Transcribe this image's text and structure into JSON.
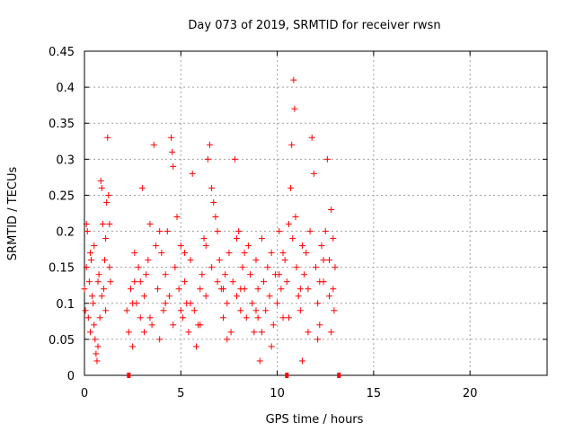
{
  "chart_data": {
    "type": "scatter",
    "title": "Day 073 of 2019, SRMTID for receiver rwsn",
    "xlabel": "GPS time / hours",
    "ylabel": "SRMTID / TECUs",
    "xlim": [
      0,
      24
    ],
    "ylim": [
      0,
      0.45
    ],
    "x_ticks": [
      "0",
      "5",
      "10",
      "15",
      "20"
    ],
    "y_ticks": [
      "0",
      "0.05",
      "0.1",
      "0.15",
      "0.2",
      "0.25",
      "0.3",
      "0.35",
      "0.4",
      "0.45"
    ],
    "grid": true,
    "marker": "+",
    "series_color": "#ff0000",
    "series": [
      {
        "values": [
          [
            0.0,
            0.12
          ],
          [
            0.05,
            0.09
          ],
          [
            0.1,
            0.15
          ],
          [
            0.15,
            0.2
          ],
          [
            0.2,
            0.08
          ],
          [
            0.25,
            0.13
          ],
          [
            0.3,
            0.06
          ],
          [
            0.35,
            0.16
          ],
          [
            0.4,
            0.11
          ],
          [
            0.45,
            0.1
          ],
          [
            0.5,
            0.18
          ],
          [
            0.55,
            0.05
          ],
          [
            0.6,
            0.03
          ],
          [
            0.65,
            0.02
          ],
          [
            0.7,
            0.04
          ],
          [
            0.75,
            0.14
          ],
          [
            0.8,
            0.08
          ],
          [
            0.85,
            0.27
          ],
          [
            0.9,
            0.26
          ],
          [
            0.95,
            0.21
          ],
          [
            1.0,
            0.12
          ],
          [
            1.05,
            0.16
          ],
          [
            1.1,
            0.09
          ],
          [
            1.15,
            0.24
          ],
          [
            1.2,
            0.33
          ],
          [
            1.25,
            0.25
          ],
          [
            1.3,
            0.21
          ],
          [
            1.35,
            0.13
          ],
          [
            0.1,
            0.21
          ],
          [
            0.3,
            0.17
          ],
          [
            0.5,
            0.07
          ],
          [
            0.7,
            0.13
          ],
          [
            0.9,
            0.11
          ],
          [
            1.1,
            0.19
          ],
          [
            1.3,
            0.15
          ],
          [
            2.2,
            0.09
          ],
          [
            2.3,
            0.06
          ],
          [
            2.4,
            0.12
          ],
          [
            2.5,
            0.04
          ],
          [
            2.6,
            0.13
          ],
          [
            2.7,
            0.1
          ],
          [
            2.8,
            0.15
          ],
          [
            2.9,
            0.08
          ],
          [
            3.0,
            0.26
          ],
          [
            3.1,
            0.11
          ],
          [
            3.2,
            0.14
          ],
          [
            3.3,
            0.16
          ],
          [
            3.4,
            0.21
          ],
          [
            3.5,
            0.07
          ],
          [
            3.6,
            0.32
          ],
          [
            3.7,
            0.18
          ],
          [
            3.8,
            0.12
          ],
          [
            3.9,
            0.05
          ],
          [
            4.0,
            0.17
          ],
          [
            4.1,
            0.09
          ],
          [
            4.2,
            0.14
          ],
          [
            4.3,
            0.2
          ],
          [
            4.4,
            0.11
          ],
          [
            4.5,
            0.33
          ],
          [
            4.55,
            0.31
          ],
          [
            4.6,
            0.29
          ],
          [
            4.7,
            0.15
          ],
          [
            4.8,
            0.22
          ],
          [
            4.9,
            0.12
          ],
          [
            5.0,
            0.18
          ],
          [
            5.1,
            0.08
          ],
          [
            5.2,
            0.13
          ],
          [
            5.3,
            0.1
          ],
          [
            5.4,
            0.06
          ],
          [
            5.5,
            0.16
          ],
          [
            5.6,
            0.28
          ],
          [
            5.7,
            0.09
          ],
          [
            5.8,
            0.04
          ],
          [
            5.9,
            0.07
          ],
          [
            6.0,
            0.12
          ],
          [
            6.1,
            0.14
          ],
          [
            6.2,
            0.19
          ],
          [
            6.3,
            0.11
          ],
          [
            6.4,
            0.3
          ],
          [
            6.5,
            0.32
          ],
          [
            6.6,
            0.26
          ],
          [
            6.7,
            0.24
          ],
          [
            6.8,
            0.22
          ],
          [
            6.9,
            0.2
          ],
          [
            7.0,
            0.16
          ],
          [
            7.1,
            0.12
          ],
          [
            7.2,
            0.08
          ],
          [
            7.3,
            0.14
          ],
          [
            7.4,
            0.1
          ],
          [
            7.5,
            0.17
          ],
          [
            7.6,
            0.06
          ],
          [
            7.7,
            0.13
          ],
          [
            7.8,
            0.3
          ],
          [
            7.9,
            0.11
          ],
          [
            8.0,
            0.2
          ],
          [
            8.1,
            0.09
          ],
          [
            8.2,
            0.15
          ],
          [
            8.3,
            0.12
          ],
          [
            8.4,
            0.08
          ],
          [
            8.5,
            0.18
          ],
          [
            8.6,
            0.14
          ],
          [
            8.7,
            0.1
          ],
          [
            8.8,
            0.06
          ],
          [
            8.9,
            0.16
          ],
          [
            9.0,
            0.12
          ],
          [
            9.1,
            0.02
          ],
          [
            9.2,
            0.19
          ],
          [
            9.3,
            0.13
          ],
          [
            9.4,
            0.09
          ],
          [
            9.5,
            0.15
          ],
          [
            9.6,
            0.11
          ],
          [
            9.7,
            0.17
          ],
          [
            9.8,
            0.07
          ],
          [
            9.9,
            0.14
          ],
          [
            10.0,
            0.1
          ],
          [
            10.1,
            0.2
          ],
          [
            10.2,
            0.12
          ],
          [
            10.3,
            0.08
          ],
          [
            10.4,
            0.16
          ],
          [
            10.5,
            0.13
          ],
          [
            10.6,
            0.21
          ],
          [
            10.7,
            0.26
          ],
          [
            10.75,
            0.32
          ],
          [
            10.8,
            0.19
          ],
          [
            10.85,
            0.41
          ],
          [
            10.9,
            0.37
          ],
          [
            10.95,
            0.22
          ],
          [
            11.0,
            0.15
          ],
          [
            11.1,
            0.11
          ],
          [
            11.2,
            0.09
          ],
          [
            11.3,
            0.02
          ],
          [
            11.4,
            0.14
          ],
          [
            11.5,
            0.17
          ],
          [
            11.6,
            0.12
          ],
          [
            11.7,
            0.2
          ],
          [
            11.8,
            0.33
          ],
          [
            11.9,
            0.28
          ],
          [
            12.0,
            0.15
          ],
          [
            12.1,
            0.1
          ],
          [
            12.2,
            0.07
          ],
          [
            12.3,
            0.18
          ],
          [
            12.4,
            0.13
          ],
          [
            12.5,
            0.2
          ],
          [
            12.6,
            0.3
          ],
          [
            12.7,
            0.16
          ],
          [
            12.8,
            0.23
          ],
          [
            12.9,
            0.12
          ],
          [
            13.0,
            0.15
          ],
          [
            12.95,
            0.09
          ],
          [
            2.6,
            0.17
          ],
          [
            3.4,
            0.08
          ],
          [
            4.6,
            0.07
          ],
          [
            5.5,
            0.1
          ],
          [
            6.6,
            0.15
          ],
          [
            7.4,
            0.05
          ],
          [
            8.3,
            0.17
          ],
          [
            9.2,
            0.06
          ],
          [
            10.1,
            0.14
          ],
          [
            11.3,
            0.18
          ],
          [
            12.1,
            0.05
          ],
          [
            12.7,
            0.11
          ],
          [
            2.9,
            0.13
          ],
          [
            3.9,
            0.2
          ],
          [
            5.0,
            0.09
          ],
          [
            6.0,
            0.07
          ],
          [
            6.9,
            0.13
          ],
          [
            7.9,
            0.19
          ],
          [
            8.9,
            0.09
          ],
          [
            9.7,
            0.04
          ],
          [
            10.6,
            0.08
          ],
          [
            11.6,
            0.06
          ],
          [
            12.4,
            0.16
          ],
          [
            12.8,
            0.06
          ],
          [
            2.5,
            0.1
          ],
          [
            3.1,
            0.06
          ],
          [
            4.2,
            0.1
          ],
          [
            5.2,
            0.17
          ],
          [
            6.3,
            0.18
          ],
          [
            7.2,
            0.12
          ],
          [
            8.1,
            0.12
          ],
          [
            9.0,
            0.08
          ],
          [
            10.3,
            0.17
          ],
          [
            11.2,
            0.12
          ],
          [
            12.2,
            0.13
          ],
          [
            12.9,
            0.19
          ]
        ]
      }
    ],
    "baseline_markers_x": [
      2.3,
      10.5,
      13.2
    ]
  }
}
